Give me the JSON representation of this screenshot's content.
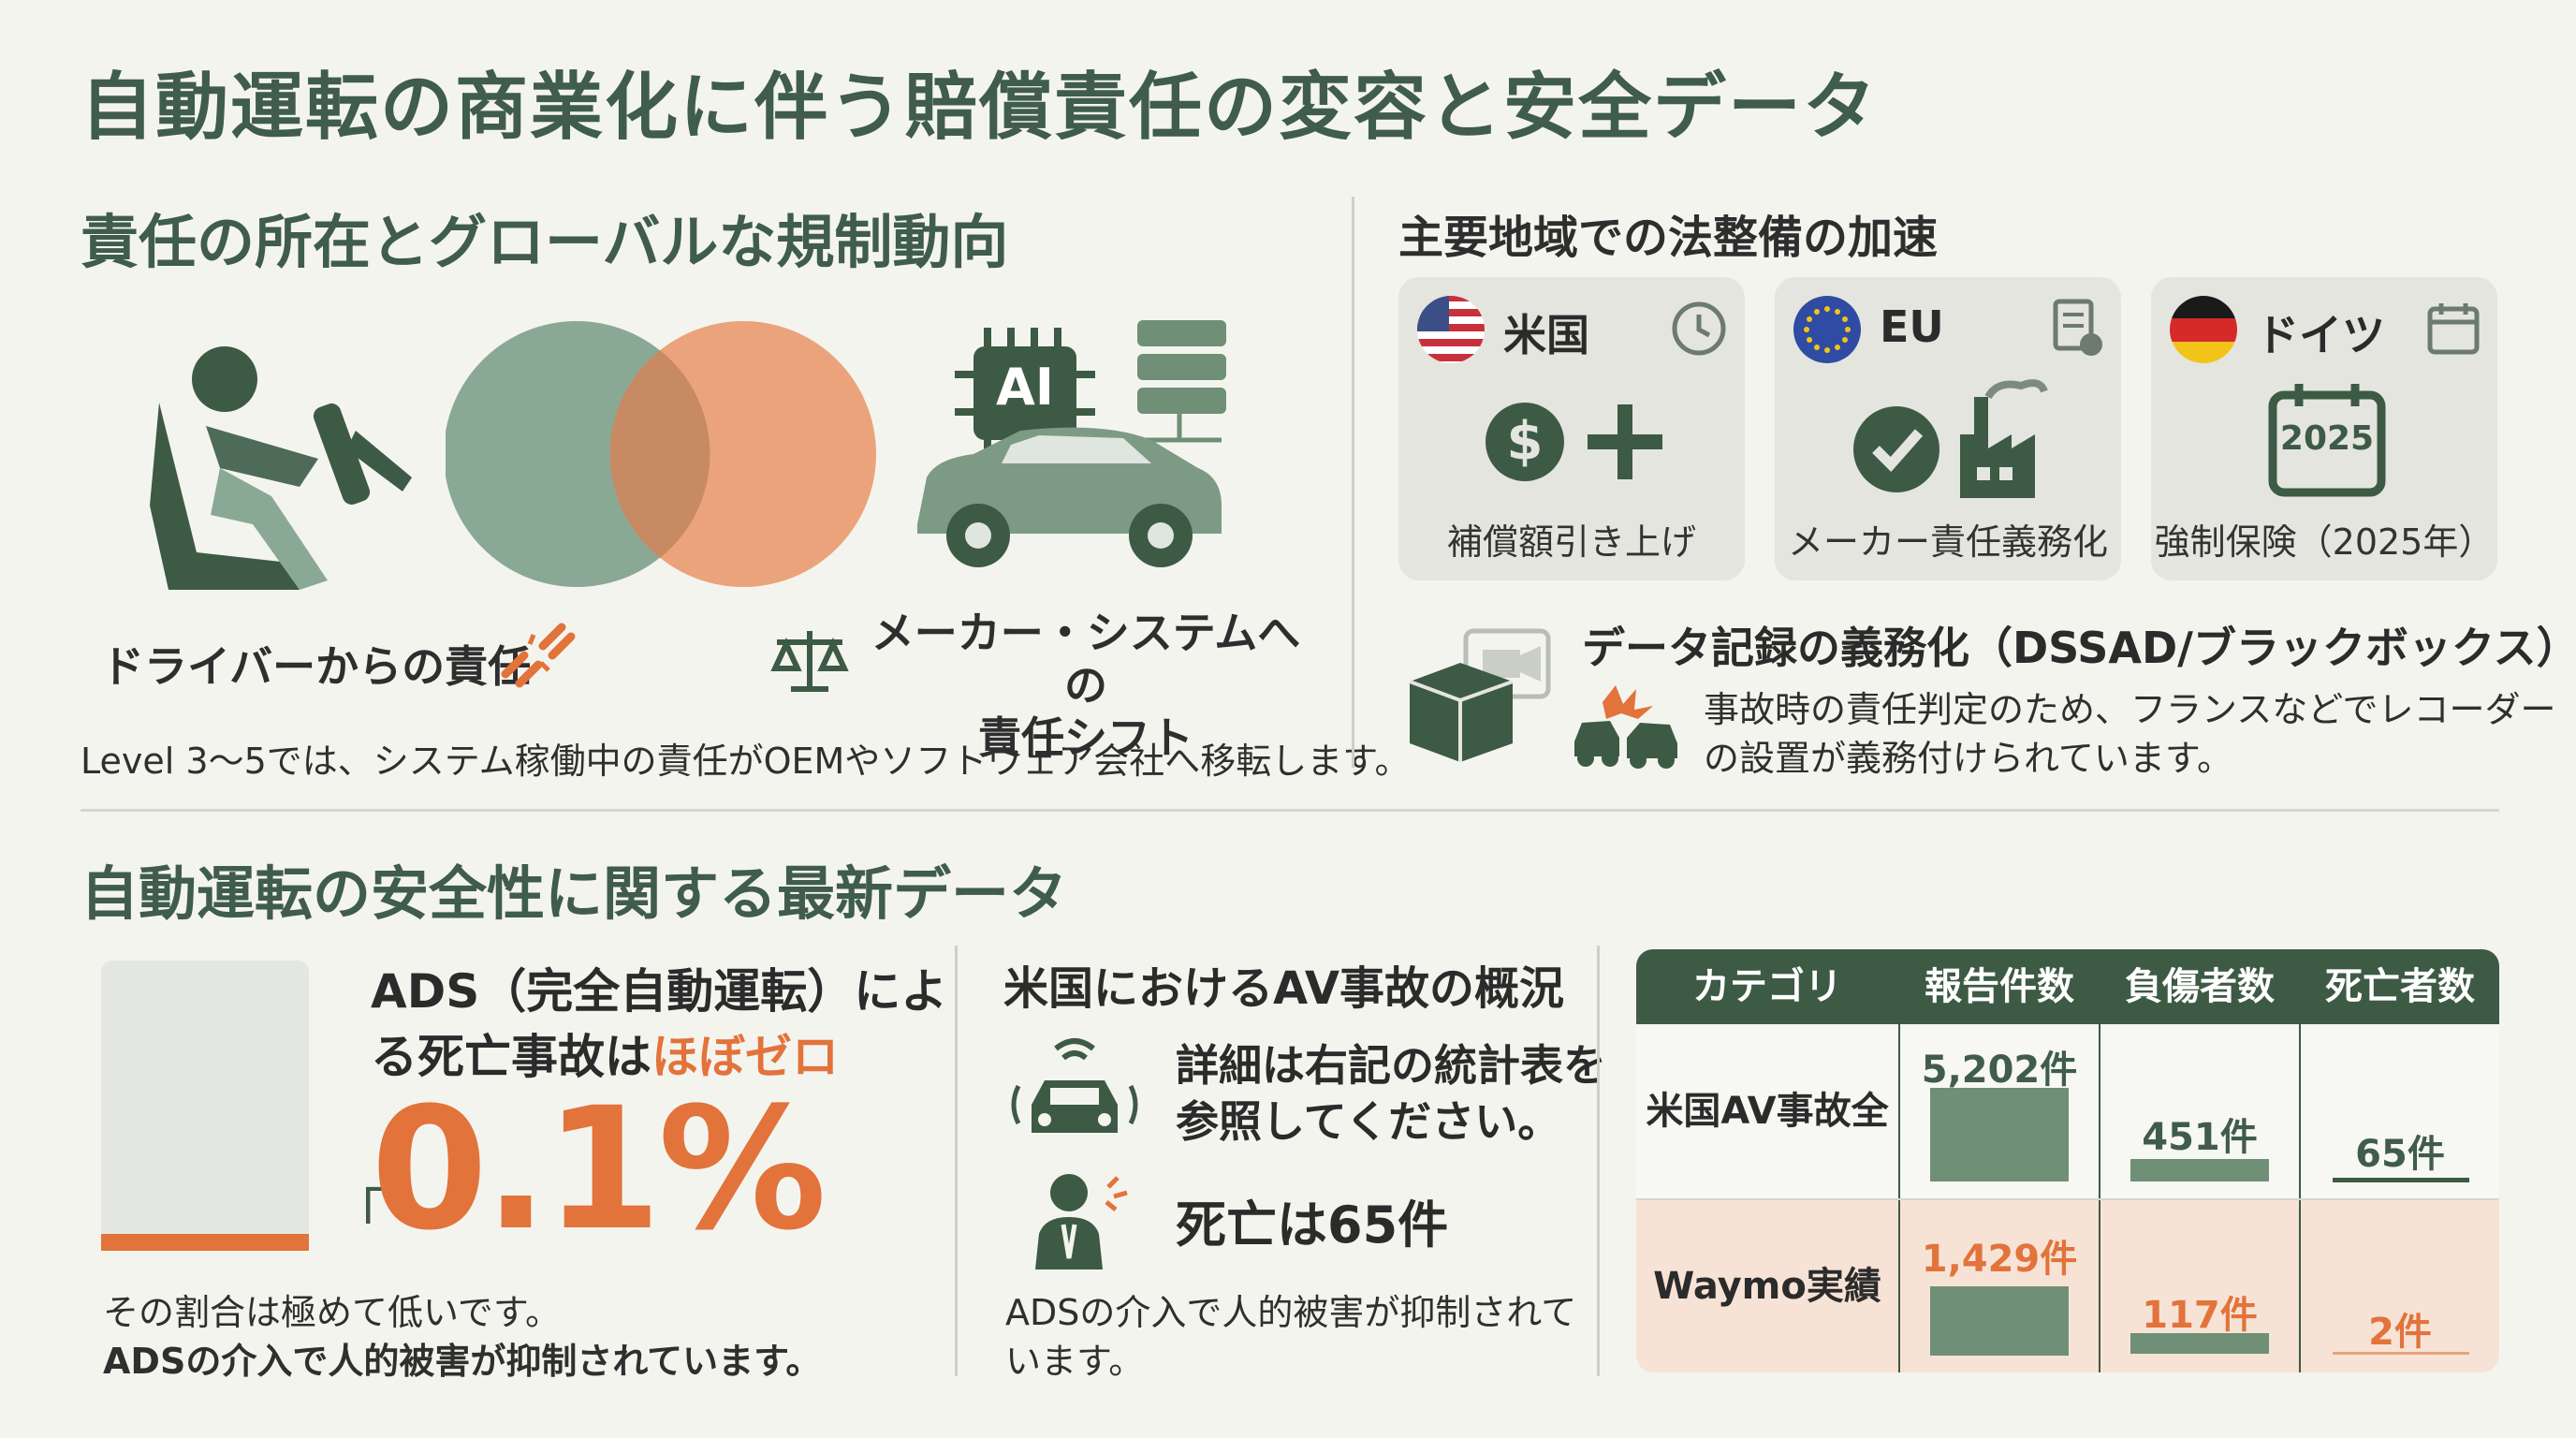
{
  "title": "自動運転の商業化に伴う賠償責任の変容と安全データ",
  "liability": {
    "heading": "責任の所在とグローバルな規制動向",
    "driver_label": "ドライバーからの責任",
    "system_label_1": "メーカー・システムへの",
    "system_label_2": "責任シフト",
    "ai_chip_label": "AI",
    "note": "Level 3〜5では、システム稼働中の責任がOEMやソフトウェア会社へ移転します。",
    "venn_colors": [
      "#8aa995",
      "#ea9a6e"
    ]
  },
  "regions": {
    "heading": "主要地域での法整備の加速",
    "cards": [
      {
        "name": "米国",
        "caption": "補償額引き上げ"
      },
      {
        "name": "EU",
        "caption": "メーカー責任義務化"
      },
      {
        "name": "ドイツ",
        "caption": "強制保険（2025年）",
        "year_badge": "2025"
      }
    ],
    "data_record_title": "データ記録の義務化（DSSAD/ブラックボックス）",
    "data_record_line1": "事故時の責任判定のため、フランスなどでレコーダー",
    "data_record_line2": "の設置が義務付けられています。"
  },
  "safety": {
    "heading": "自動運転の安全性に関する最新データ",
    "ads_line1": "ADS（完全自動運転）によ",
    "ads_line2_prefix": "る死亡事故は",
    "ads_line2_highlight": "ほぼゼロ",
    "ads_bracket": "「",
    "ads_percent": "0.1%",
    "ads_level": 0.001,
    "ads_note1": "その割合は極めて低いです。",
    "ads_note2": "ADSの介入で人的被害が抑制されています。",
    "us_heading": "米国におけるAV事故の概況",
    "us_detail1": "詳細は右記の統計表を",
    "us_detail2": "参照してください。",
    "us_fatal": "死亡は65件",
    "us_note1": "ADSの介入で人的被害が抑制されて",
    "us_note2": "います。",
    "accent_orange": "#e2733b",
    "accent_green": "#3d5a45"
  },
  "table": {
    "headers": [
      "カテゴリ",
      "報告件数",
      "負傷者数",
      "死亡者数"
    ],
    "rows": [
      {
        "category": "米国AV事故全体",
        "reports": "5,202件",
        "injuries": "451件",
        "deaths": "65件"
      },
      {
        "category": "Waymo実績",
        "reports": "1,429件",
        "injuries": "117件",
        "deaths": "2件"
      }
    ]
  }
}
